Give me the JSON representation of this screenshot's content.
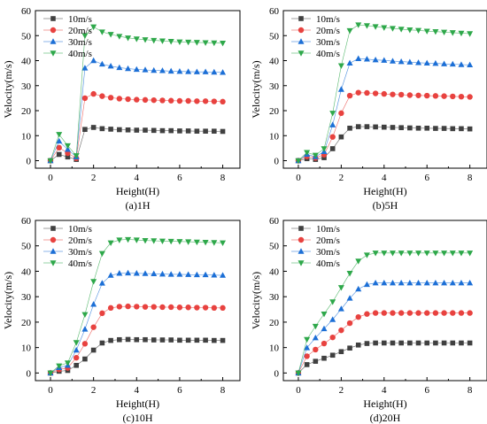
{
  "chart_data": [
    {
      "type": "line",
      "caption": "(a)1H",
      "xlabel": "Height(H)",
      "ylabel": "Velocity(m/s)",
      "xlim": [
        -0.7,
        8.8
      ],
      "ylim": [
        -3,
        60
      ],
      "xticks": [
        0,
        2,
        4,
        6,
        8
      ],
      "yticks": [
        0,
        10,
        20,
        30,
        40,
        50,
        60
      ],
      "legend_position": "top-left",
      "x": [
        0,
        0.4,
        0.8,
        1.2,
        1.6,
        2.0,
        2.4,
        2.8,
        3.2,
        3.6,
        4.0,
        4.4,
        4.8,
        5.2,
        5.6,
        6.0,
        6.4,
        6.8,
        7.2,
        7.6,
        8.0
      ],
      "series": [
        {
          "name": "10m/s",
          "marker": "square",
          "color": "#404040",
          "values": [
            0,
            2.5,
            1.5,
            0.5,
            12.5,
            13.3,
            12.8,
            12.6,
            12.4,
            12.3,
            12.2,
            12.2,
            12.1,
            12.0,
            12.0,
            11.9,
            11.9,
            11.8,
            11.8,
            11.8,
            11.7
          ]
        },
        {
          "name": "20m/s",
          "marker": "circle",
          "color": "#e8423f",
          "values": [
            0,
            5.2,
            3.0,
            1.0,
            25.0,
            26.7,
            25.8,
            25.2,
            24.8,
            24.6,
            24.4,
            24.3,
            24.2,
            24.1,
            24.0,
            23.9,
            23.9,
            23.8,
            23.8,
            23.7,
            23.6
          ]
        },
        {
          "name": "30m/s",
          "marker": "triangle-up",
          "color": "#1c6fd6",
          "values": [
            0,
            7.8,
            4.5,
            1.5,
            37.0,
            40.0,
            38.6,
            37.8,
            37.2,
            36.8,
            36.5,
            36.3,
            36.1,
            36.0,
            35.8,
            35.7,
            35.6,
            35.5,
            35.5,
            35.4,
            35.3
          ]
        },
        {
          "name": "40m/s",
          "marker": "triangle-down",
          "color": "#2ea84a",
          "values": [
            0,
            10.5,
            6.0,
            2.0,
            50.0,
            53.5,
            51.5,
            50.5,
            49.7,
            49.1,
            48.7,
            48.4,
            48.1,
            47.9,
            47.7,
            47.5,
            47.4,
            47.3,
            47.2,
            47.1,
            47.0
          ]
        }
      ]
    },
    {
      "type": "line",
      "caption": "(b)5H",
      "xlabel": "Height(H)",
      "ylabel": "Velocity(m/s)",
      "xlim": [
        -0.7,
        8.8
      ],
      "ylim": [
        -3,
        60
      ],
      "xticks": [
        0,
        2,
        4,
        6,
        8
      ],
      "yticks": [
        0,
        10,
        20,
        30,
        40,
        50,
        60
      ],
      "legend_position": "top-left",
      "x": [
        0,
        0.4,
        0.8,
        1.2,
        1.6,
        2.0,
        2.4,
        2.8,
        3.2,
        3.6,
        4.0,
        4.4,
        4.8,
        5.2,
        5.6,
        6.0,
        6.4,
        6.8,
        7.2,
        7.6,
        8.0
      ],
      "series": [
        {
          "name": "10m/s",
          "marker": "square",
          "color": "#404040",
          "values": [
            0,
            0.8,
            0.5,
            1.2,
            4.8,
            9.5,
            13.0,
            13.6,
            13.6,
            13.5,
            13.4,
            13.3,
            13.2,
            13.1,
            13.0,
            13.0,
            12.9,
            12.9,
            12.8,
            12.8,
            12.7
          ]
        },
        {
          "name": "20m/s",
          "marker": "circle",
          "color": "#e8423f",
          "values": [
            0,
            1.7,
            1.1,
            2.4,
            9.5,
            19.0,
            26.0,
            27.2,
            27.1,
            26.9,
            26.7,
            26.5,
            26.4,
            26.2,
            26.1,
            26.0,
            25.9,
            25.8,
            25.7,
            25.6,
            25.5
          ]
        },
        {
          "name": "30m/s",
          "marker": "triangle-up",
          "color": "#1c6fd6",
          "values": [
            0,
            2.5,
            1.6,
            3.6,
            14.3,
            28.5,
            39.0,
            40.8,
            40.6,
            40.3,
            40.1,
            39.8,
            39.6,
            39.4,
            39.2,
            39.0,
            38.9,
            38.7,
            38.6,
            38.4,
            38.3
          ]
        },
        {
          "name": "40m/s",
          "marker": "triangle-down",
          "color": "#2ea84a",
          "values": [
            0,
            3.3,
            2.2,
            4.8,
            19.0,
            38.0,
            52.0,
            54.3,
            54.0,
            53.6,
            53.2,
            52.9,
            52.6,
            52.3,
            52.1,
            51.8,
            51.6,
            51.4,
            51.2,
            51.0,
            50.8
          ]
        }
      ]
    },
    {
      "type": "line",
      "caption": "(c)10H",
      "xlabel": "Height(H)",
      "ylabel": "Velocity(m/s)",
      "xlim": [
        -0.7,
        8.8
      ],
      "ylim": [
        -3,
        60
      ],
      "xticks": [
        0,
        2,
        4,
        6,
        8
      ],
      "yticks": [
        0,
        10,
        20,
        30,
        40,
        50,
        60
      ],
      "legend_position": "top-left",
      "x": [
        0,
        0.4,
        0.8,
        1.2,
        1.6,
        2.0,
        2.4,
        2.8,
        3.2,
        3.6,
        4.0,
        4.4,
        4.8,
        5.2,
        5.6,
        6.0,
        6.4,
        6.8,
        7.2,
        7.6,
        8.0
      ],
      "series": [
        {
          "name": "10m/s",
          "marker": "square",
          "color": "#404040",
          "values": [
            0,
            0.7,
            1.0,
            3.0,
            5.5,
            9.0,
            11.8,
            12.8,
            13.1,
            13.2,
            13.1,
            13.1,
            13.0,
            13.0,
            13.0,
            12.9,
            12.9,
            12.9,
            12.9,
            12.8,
            12.8
          ]
        },
        {
          "name": "20m/s",
          "marker": "circle",
          "color": "#e8423f",
          "values": [
            0,
            1.4,
            2.0,
            6.0,
            11.5,
            18.0,
            23.5,
            25.6,
            26.1,
            26.2,
            26.1,
            26.0,
            26.0,
            25.9,
            25.9,
            25.8,
            25.8,
            25.7,
            25.7,
            25.6,
            25.6
          ]
        },
        {
          "name": "30m/s",
          "marker": "triangle-up",
          "color": "#1c6fd6",
          "values": [
            0,
            2.1,
            3.0,
            9.0,
            17.2,
            27.0,
            35.3,
            38.4,
            39.2,
            39.3,
            39.2,
            39.1,
            39.0,
            38.9,
            38.8,
            38.8,
            38.7,
            38.6,
            38.6,
            38.5,
            38.4
          ]
        },
        {
          "name": "40m/s",
          "marker": "triangle-down",
          "color": "#2ea84a",
          "values": [
            0,
            2.8,
            4.0,
            12.0,
            23.0,
            36.0,
            47.0,
            51.2,
            52.3,
            52.5,
            52.3,
            52.1,
            52.0,
            51.9,
            51.8,
            51.7,
            51.6,
            51.5,
            51.4,
            51.3,
            51.2
          ]
        }
      ]
    },
    {
      "type": "line",
      "caption": "(d)20H",
      "xlabel": "Height(H)",
      "ylabel": "Velocity(m/s)",
      "xlim": [
        -0.7,
        8.8
      ],
      "ylim": [
        -3,
        60
      ],
      "xticks": [
        0,
        2,
        4,
        6,
        8
      ],
      "yticks": [
        0,
        10,
        20,
        30,
        40,
        50,
        60
      ],
      "legend_position": "top-left",
      "x": [
        0,
        0.4,
        0.8,
        1.2,
        1.6,
        2.0,
        2.4,
        2.8,
        3.2,
        3.6,
        4.0,
        4.4,
        4.8,
        5.2,
        5.6,
        6.0,
        6.4,
        6.8,
        7.2,
        7.6,
        8.0
      ],
      "series": [
        {
          "name": "10m/s",
          "marker": "square",
          "color": "#404040",
          "values": [
            0,
            3.3,
            4.6,
            5.8,
            7.0,
            8.4,
            9.8,
            11.0,
            11.6,
            11.8,
            11.8,
            11.8,
            11.8,
            11.8,
            11.8,
            11.8,
            11.8,
            11.8,
            11.8,
            11.8,
            11.8
          ]
        },
        {
          "name": "20m/s",
          "marker": "circle",
          "color": "#e8423f",
          "values": [
            0,
            6.6,
            9.2,
            11.6,
            14.0,
            16.8,
            19.6,
            22.0,
            23.2,
            23.6,
            23.6,
            23.6,
            23.6,
            23.6,
            23.6,
            23.6,
            23.6,
            23.6,
            23.6,
            23.6,
            23.6
          ]
        },
        {
          "name": "30m/s",
          "marker": "triangle-up",
          "color": "#1c6fd6",
          "values": [
            0,
            9.9,
            13.8,
            17.4,
            21.0,
            25.2,
            29.4,
            33.0,
            34.8,
            35.4,
            35.4,
            35.4,
            35.4,
            35.4,
            35.4,
            35.4,
            35.4,
            35.4,
            35.4,
            35.4,
            35.4
          ]
        },
        {
          "name": "40m/s",
          "marker": "triangle-down",
          "color": "#2ea84a",
          "values": [
            0,
            13.2,
            18.4,
            23.2,
            28.0,
            33.6,
            39.2,
            44.0,
            46.4,
            47.2,
            47.2,
            47.2,
            47.2,
            47.2,
            47.2,
            47.2,
            47.2,
            47.2,
            47.2,
            47.2,
            47.2
          ]
        }
      ]
    }
  ]
}
